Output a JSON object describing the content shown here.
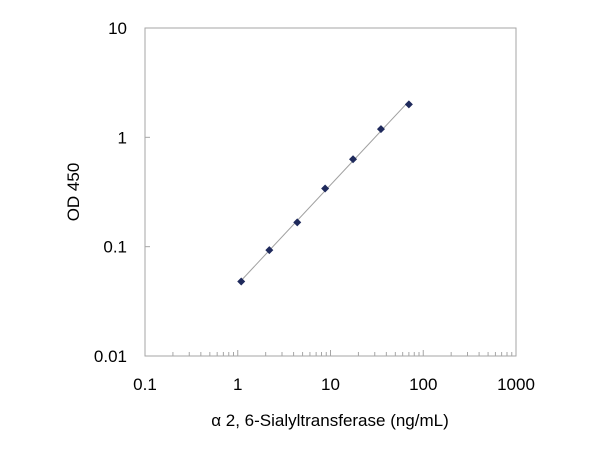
{
  "chart_data": {
    "type": "scatter",
    "x_scale": "log",
    "y_scale": "log",
    "xlim": [
      0.1,
      1000
    ],
    "ylim": [
      0.01,
      10
    ],
    "x_ticks": [
      "0.1",
      "1",
      "10",
      "100",
      "1000"
    ],
    "y_ticks": [
      "0.01",
      "0.1",
      "1",
      "10"
    ],
    "xlabel": "α 2, 6-Sialyltransferase (ng/mL)",
    "ylabel": "OD 450",
    "grid": false,
    "legend": "none",
    "trendline": "power fit through points",
    "series": [
      {
        "marker": "diamond",
        "color": "#1f2a5c",
        "x": [
          1.09,
          2.19,
          4.38,
          8.75,
          17.5,
          35,
          70
        ],
        "y": [
          0.048,
          0.093,
          0.167,
          0.34,
          0.63,
          1.19,
          2.0
        ]
      }
    ],
    "colors": {
      "line": "#a0a0a0",
      "marker": "#1f2a5c",
      "frame": "#a6a6a6"
    }
  }
}
